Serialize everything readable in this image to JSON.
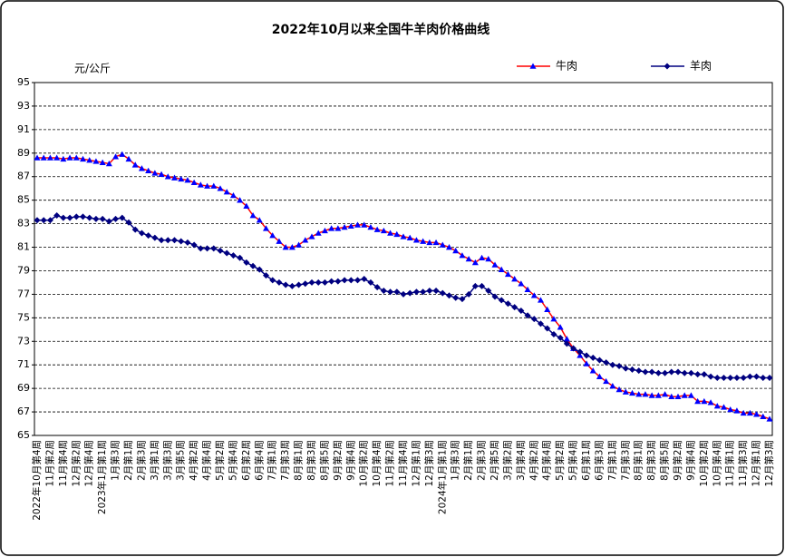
{
  "chart_data": {
    "type": "line",
    "title": "2022年10月以来全国牛羊肉价格曲线",
    "y_label": "元/公斤",
    "categories": [
      "2022年10月第4周",
      null,
      "11月第2周",
      null,
      "11月第4周",
      null,
      "12月第2周",
      null,
      "12月第4周",
      null,
      "2023年1月第1周",
      null,
      "1月第3周",
      null,
      "2月第1周",
      null,
      "2月第3周",
      null,
      "3月第1周",
      null,
      "3月第3周",
      null,
      "3月第5周",
      null,
      "4月第2周",
      null,
      "4月第4周",
      null,
      "5月第2周",
      null,
      "5月第4周",
      null,
      "6月第2周",
      null,
      "6月第4周",
      null,
      "7月第1周",
      null,
      "7月第3周",
      null,
      "8月第1周",
      null,
      "8月第3周",
      null,
      "8月第5周",
      null,
      "9月第2周",
      null,
      "9月第4周",
      null,
      "10月第2周",
      null,
      "10月第4周",
      null,
      "11月第2周",
      null,
      "11月第4周",
      null,
      "12月第1周",
      null,
      "12月第3周",
      null,
      "2024年1月第1周",
      null,
      "1月第3周",
      null,
      "2月第1周",
      null,
      "2月第3周",
      null,
      "2月第5周",
      null,
      "3月第2周",
      null,
      "3月第4周",
      null,
      "4月第2周",
      null,
      "4月第4周",
      null,
      "5月第2周",
      null,
      "5月第4周",
      null,
      "6月第1周",
      null,
      "6月第3周",
      null,
      "7月第1周",
      null,
      "7月第3周",
      null,
      "8月第1周",
      null,
      "8月第3周",
      null,
      "8月第5周",
      null,
      "9月第2周",
      null,
      "9月第4周",
      null,
      "10月第2周",
      null,
      "10月第4周",
      null,
      "11月第1周",
      null,
      "11月第3周",
      null,
      "12月第1周",
      null,
      "12月第3周"
    ],
    "series": [
      {
        "name": "牛肉",
        "color": "#ff0000",
        "marker": "triangle",
        "marker_color": "#0000ff",
        "values": [
          88.6,
          88.6,
          88.6,
          88.6,
          88.5,
          88.6,
          88.6,
          88.5,
          88.4,
          88.3,
          88.2,
          88.1,
          88.7,
          88.9,
          88.5,
          88.0,
          87.7,
          87.5,
          87.3,
          87.2,
          87.0,
          86.9,
          86.8,
          86.7,
          86.5,
          86.3,
          86.2,
          86.2,
          86.0,
          85.7,
          85.4,
          85.0,
          84.5,
          83.7,
          83.3,
          82.6,
          82.0,
          81.5,
          81.0,
          81.0,
          81.2,
          81.6,
          81.9,
          82.2,
          82.4,
          82.6,
          82.6,
          82.7,
          82.8,
          82.9,
          82.9,
          82.7,
          82.5,
          82.4,
          82.2,
          82.1,
          81.9,
          81.8,
          81.6,
          81.5,
          81.4,
          81.4,
          81.2,
          81.0,
          80.7,
          80.3,
          80.0,
          79.7,
          80.1,
          80.0,
          79.5,
          79.1,
          78.7,
          78.3,
          77.9,
          77.4,
          76.9,
          76.5,
          75.7,
          74.9,
          74.2,
          73.2,
          72.4,
          71.8,
          71.1,
          70.5,
          70.0,
          69.6,
          69.2,
          68.9,
          68.7,
          68.6,
          68.5,
          68.5,
          68.4,
          68.4,
          68.5,
          68.3,
          68.3,
          68.4,
          68.4,
          67.9,
          67.9,
          67.8,
          67.5,
          67.4,
          67.2,
          67.1,
          66.9,
          66.9,
          66.8,
          66.6,
          66.4
        ]
      },
      {
        "name": "羊肉",
        "color": "#000080",
        "marker": "diamond",
        "marker_color": "#000080",
        "values": [
          83.3,
          83.3,
          83.3,
          83.7,
          83.5,
          83.5,
          83.6,
          83.6,
          83.5,
          83.4,
          83.4,
          83.2,
          83.4,
          83.5,
          83.1,
          82.5,
          82.2,
          82.0,
          81.8,
          81.6,
          81.6,
          81.6,
          81.5,
          81.4,
          81.2,
          80.9,
          80.9,
          80.9,
          80.7,
          80.5,
          80.3,
          80.1,
          79.7,
          79.4,
          79.1,
          78.6,
          78.2,
          78.0,
          77.8,
          77.7,
          77.8,
          77.9,
          78.0,
          78.0,
          78.0,
          78.1,
          78.1,
          78.2,
          78.2,
          78.2,
          78.3,
          78.0,
          77.6,
          77.3,
          77.2,
          77.2,
          77.0,
          77.1,
          77.2,
          77.2,
          77.3,
          77.3,
          77.1,
          76.9,
          76.7,
          76.6,
          77.0,
          77.7,
          77.7,
          77.3,
          76.8,
          76.5,
          76.2,
          75.9,
          75.6,
          75.2,
          74.9,
          74.5,
          74.1,
          73.6,
          73.3,
          72.8,
          72.4,
          72.1,
          71.8,
          71.6,
          71.4,
          71.2,
          71.0,
          70.9,
          70.7,
          70.6,
          70.5,
          70.4,
          70.4,
          70.3,
          70.3,
          70.4,
          70.4,
          70.3,
          70.3,
          70.2,
          70.2,
          70.0,
          69.9,
          69.9,
          69.9,
          69.9,
          69.9,
          70.0,
          70.0,
          69.9,
          69.9
        ]
      }
    ],
    "ylim": [
      65,
      95
    ],
    "yticks": [
      65,
      67,
      69,
      71,
      73,
      75,
      77,
      79,
      81,
      83,
      85,
      87,
      89,
      91,
      93,
      95
    ],
    "grid": true,
    "legend": "top-right"
  }
}
